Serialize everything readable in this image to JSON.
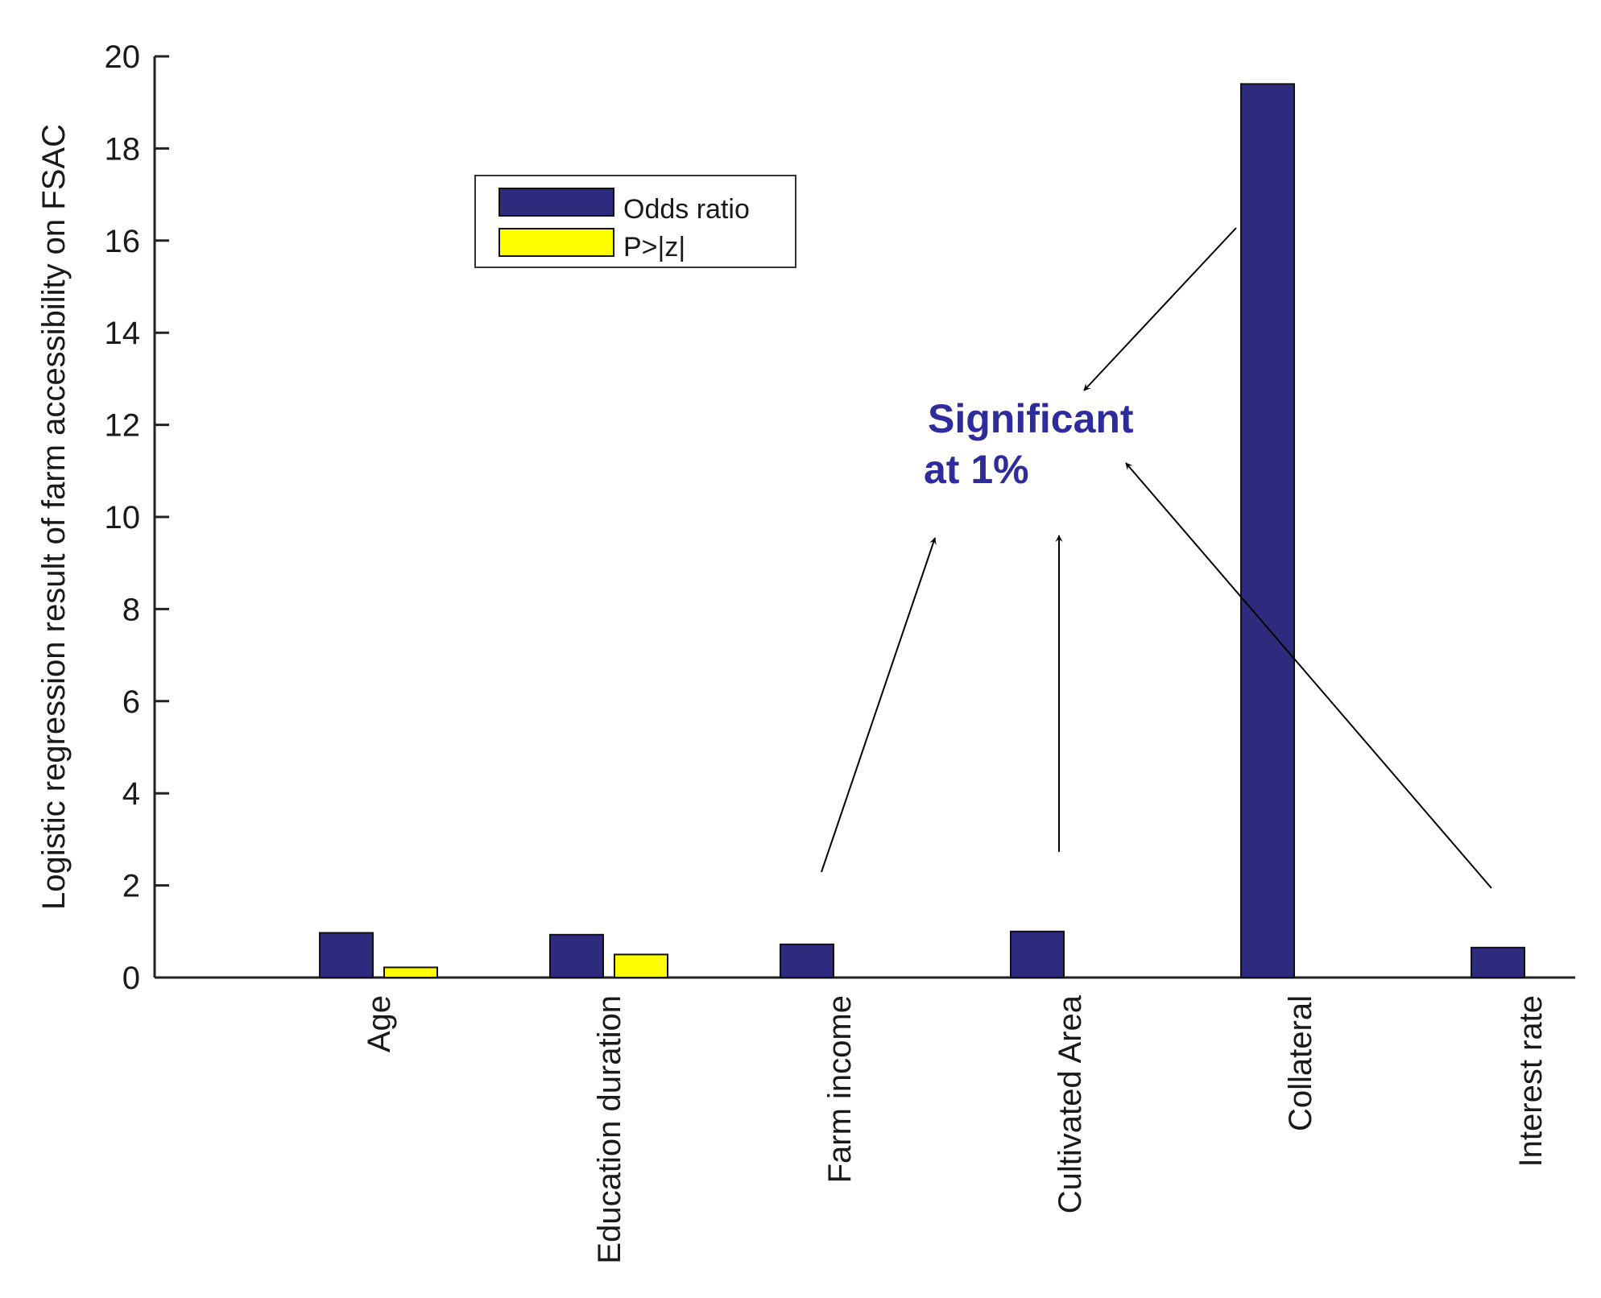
{
  "chart_data": {
    "type": "bar",
    "categories": [
      "Age",
      "Education duration",
      "Farm income",
      "Cultivated Area",
      "Collateral",
      "Interest rate"
    ],
    "series": [
      {
        "name": "Odds ratio",
        "values": [
          0.97,
          0.93,
          0.72,
          1.0,
          19.4,
          0.65
        ],
        "color": "#2e2b7e"
      },
      {
        "name": "P>|z|",
        "values": [
          0.22,
          0.5,
          0.0,
          0.0,
          0.0,
          0.0
        ],
        "color": "#ffff00"
      }
    ],
    "ylabel": "Logistic regression result of farm accessibility on FSAC",
    "xlabel": "",
    "ylim": [
      0,
      20
    ],
    "yticks": [
      0,
      2,
      4,
      6,
      8,
      10,
      12,
      14,
      16,
      18,
      20
    ],
    "grid": false,
    "legend_position": "top-left",
    "annotation": {
      "lines": [
        "Significant",
        "at 1%"
      ],
      "color": "#2e2b9c"
    }
  }
}
